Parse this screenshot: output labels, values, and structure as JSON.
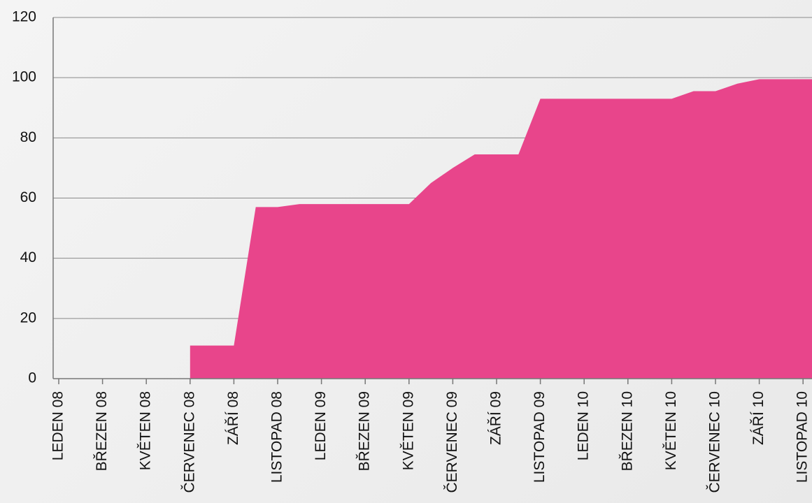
{
  "chart_data": {
    "type": "area",
    "categories": [
      "LEDEN 08",
      null,
      "BŘEZEN 08",
      null,
      "KVĚTEN 08",
      null,
      "ČERVENEC 08",
      null,
      "ZÁŘÍ 08",
      null,
      "LISTOPAD 08",
      null,
      "LEDEN 09",
      null,
      "BŘEZEN 09",
      null,
      "KVĚTEN 09",
      null,
      "ČERVENEC 09",
      null,
      "ZÁŘÍ 09",
      null,
      "LISTOPAD 09",
      null,
      "LEDEN 10",
      null,
      "BŘEZEN 10",
      null,
      "KVĚTEN 10",
      null,
      "ČERVENEC 10",
      null,
      "ZÁŘÍ 10",
      null,
      "LISTOPAD 10",
      null
    ],
    "values": [
      null,
      null,
      null,
      null,
      null,
      null,
      11,
      11,
      11,
      57,
      57,
      58,
      58,
      58,
      58,
      58,
      58,
      65,
      70,
      74.5,
      74.5,
      74.5,
      93,
      93,
      93,
      93,
      93,
      93,
      93,
      95.5,
      95.5,
      98,
      99.5,
      99.5,
      99.5,
      99.5
    ],
    "color": "#e8458b",
    "ylim": [
      0,
      120
    ],
    "yticks": [
      0,
      20,
      40,
      60,
      80,
      100,
      120
    ],
    "grid": true
  }
}
